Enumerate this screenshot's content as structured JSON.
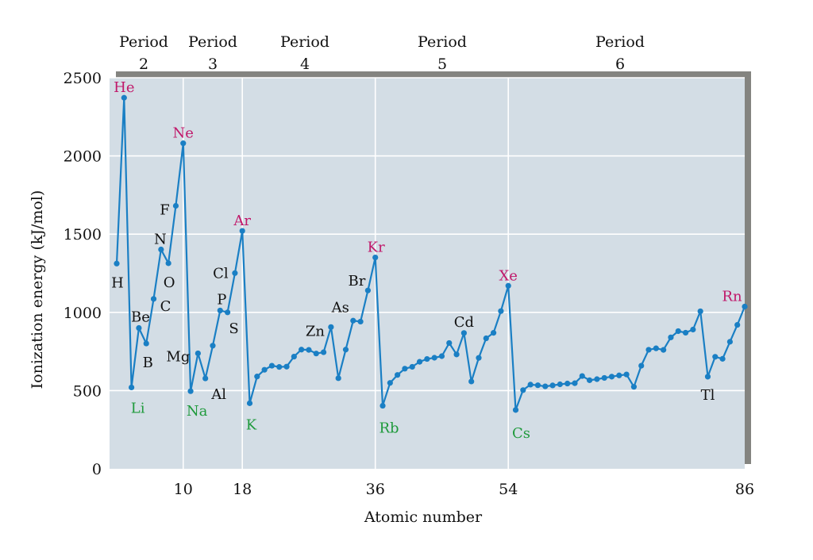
{
  "chart_data": {
    "type": "line",
    "title": "",
    "xlabel": "Atomic number",
    "ylabel": "Ionization energy (kJ/mol)",
    "xlim": [
      1,
      86
    ],
    "ylim": [
      0,
      2500
    ],
    "xticks": [
      "10",
      "18",
      "36",
      "54",
      "86"
    ],
    "yticks": [
      "0",
      "500",
      "1000",
      "1500",
      "2000",
      "2500"
    ],
    "grid": true,
    "period_labels": [
      {
        "word": "Period",
        "num": "2"
      },
      {
        "word": "Period",
        "num": "3"
      },
      {
        "word": "Period",
        "num": "4"
      },
      {
        "word": "Period",
        "num": "5"
      },
      {
        "word": "Period",
        "num": "6"
      }
    ],
    "colors": {
      "line": "#1a7fc4",
      "plot_background": "#d3dde5",
      "noble_gas_label": "#c0186a",
      "alkali_label": "#1f9a3c",
      "other_label": "#111111"
    },
    "series": [
      {
        "x": [
          1,
          2,
          3,
          4,
          5,
          6,
          7,
          8,
          9,
          10,
          11,
          12,
          13,
          14,
          15,
          16,
          17,
          18,
          19,
          20,
          21,
          22,
          23,
          24,
          25,
          26,
          27,
          28,
          29,
          30,
          31,
          32,
          33,
          34,
          35,
          36,
          37,
          38,
          39,
          40,
          41,
          42,
          43,
          44,
          45,
          46,
          47,
          48,
          49,
          50,
          51,
          52,
          53,
          54,
          55,
          56,
          57,
          58,
          59,
          60,
          61,
          62,
          63,
          64,
          65,
          66,
          67,
          68,
          69,
          70,
          71,
          72,
          73,
          74,
          75,
          76,
          77,
          78,
          79,
          80,
          81,
          82,
          83,
          84,
          85,
          86
        ],
        "y": [
          1312,
          2372,
          520,
          900,
          801,
          1086,
          1402,
          1314,
          1681,
          2081,
          496,
          738,
          578,
          787,
          1012,
          1000,
          1251,
          1521,
          419,
          590,
          633,
          659,
          651,
          653,
          717,
          762,
          760,
          737,
          745,
          906,
          579,
          762,
          947,
          941,
          1140,
          1351,
          403,
          549,
          600,
          640,
          652,
          684,
          702,
          710,
          720,
          804,
          731,
          868,
          558,
          709,
          834,
          869,
          1008,
          1170,
          376,
          503,
          538,
          534,
          527,
          533,
          540,
          545,
          547,
          593,
          566,
          573,
          581,
          589,
          597,
          603,
          524,
          659,
          761,
          770,
          760,
          840,
          880,
          870,
          890,
          1007,
          589,
          716,
          703,
          812,
          920,
          1037
        ]
      }
    ],
    "element_labels": [
      {
        "text": "He",
        "x": 2,
        "y": 2372,
        "kind": "noble"
      },
      {
        "text": "Ne",
        "x": 10,
        "y": 2081,
        "kind": "noble"
      },
      {
        "text": "Ar",
        "x": 18,
        "y": 1521,
        "kind": "noble"
      },
      {
        "text": "Kr",
        "x": 36,
        "y": 1351,
        "kind": "noble"
      },
      {
        "text": "Xe",
        "x": 54,
        "y": 1170,
        "kind": "noble"
      },
      {
        "text": "Rn",
        "x": 86,
        "y": 1037,
        "kind": "noble"
      },
      {
        "text": "Li",
        "x": 3,
        "y": 520,
        "kind": "alkali"
      },
      {
        "text": "Na",
        "x": 11,
        "y": 496,
        "kind": "alkali"
      },
      {
        "text": "K",
        "x": 19,
        "y": 419,
        "kind": "alkali"
      },
      {
        "text": "Rb",
        "x": 37,
        "y": 403,
        "kind": "alkali"
      },
      {
        "text": "Cs",
        "x": 55,
        "y": 376,
        "kind": "alkali"
      },
      {
        "text": "H",
        "x": 1,
        "y": 1312,
        "kind": "other"
      },
      {
        "text": "Be",
        "x": 4,
        "y": 900,
        "kind": "other"
      },
      {
        "text": "B",
        "x": 5,
        "y": 801,
        "kind": "other"
      },
      {
        "text": "C",
        "x": 6,
        "y": 1086,
        "kind": "other"
      },
      {
        "text": "N",
        "x": 7,
        "y": 1402,
        "kind": "other"
      },
      {
        "text": "O",
        "x": 8,
        "y": 1314,
        "kind": "other"
      },
      {
        "text": "F",
        "x": 9,
        "y": 1681,
        "kind": "other"
      },
      {
        "text": "Mg",
        "x": 12,
        "y": 738,
        "kind": "other"
      },
      {
        "text": "Al",
        "x": 13,
        "y": 578,
        "kind": "other"
      },
      {
        "text": "P",
        "x": 15,
        "y": 1012,
        "kind": "other"
      },
      {
        "text": "S",
        "x": 16,
        "y": 1000,
        "kind": "other"
      },
      {
        "text": "Cl",
        "x": 17,
        "y": 1251,
        "kind": "other"
      },
      {
        "text": "Zn",
        "x": 30,
        "y": 906,
        "kind": "other"
      },
      {
        "text": "As",
        "x": 33,
        "y": 947,
        "kind": "other"
      },
      {
        "text": "Br",
        "x": 35,
        "y": 1140,
        "kind": "other"
      },
      {
        "text": "Cd",
        "x": 48,
        "y": 868,
        "kind": "other"
      },
      {
        "text": "Tl",
        "x": 81,
        "y": 589,
        "kind": "other"
      }
    ]
  }
}
